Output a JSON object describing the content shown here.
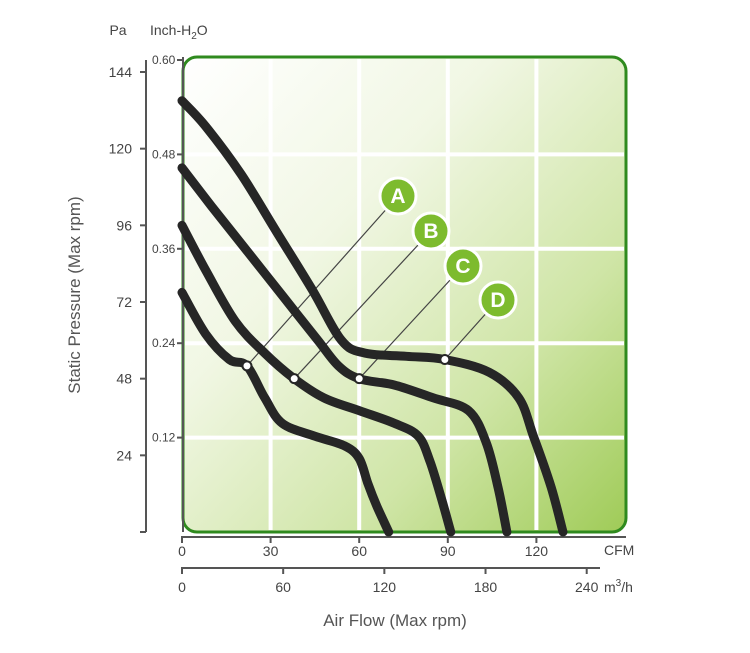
{
  "chart_data": {
    "type": "line",
    "ylabel": "Static Pressure (Max rpm)",
    "xlabel": "Air Flow (Max rpm)",
    "y_axes": [
      {
        "unit": "Pa",
        "ticks": [
          "24",
          "48",
          "72",
          "96",
          "120",
          "144"
        ],
        "range": [
          0,
          144
        ]
      },
      {
        "unit": "Inch-H",
        "unit_sub": "2",
        "unit_tail": "O",
        "ticks": [
          "0.12",
          "0.24",
          "0.36",
          "0.48",
          "0.60"
        ],
        "range": [
          0,
          0.6
        ]
      }
    ],
    "x_axes": [
      {
        "unit": "CFM",
        "ticks": [
          "0",
          "30",
          "60",
          "90",
          "120"
        ],
        "range": [
          0,
          150
        ]
      },
      {
        "unit": "m",
        "unit_sup": "3",
        "unit_tail": "/h",
        "ticks": [
          "0",
          "60",
          "120",
          "180",
          "240"
        ],
        "range": [
          0,
          255
        ]
      }
    ],
    "grid": true,
    "series": [
      {
        "label": "A",
        "operating_point": [
          22,
          52
        ],
        "points": [
          [
            0,
            75
          ],
          [
            8,
            62
          ],
          [
            16,
            54
          ],
          [
            22,
            52
          ],
          [
            28,
            42
          ],
          [
            34,
            34
          ],
          [
            45,
            30
          ],
          [
            55,
            27
          ],
          [
            60,
            23
          ],
          [
            63,
            15
          ],
          [
            66,
            8
          ],
          [
            70,
            0
          ]
        ]
      },
      {
        "label": "B",
        "operating_point": [
          38,
          48
        ],
        "points": [
          [
            0,
            96
          ],
          [
            8,
            82
          ],
          [
            18,
            66
          ],
          [
            28,
            56
          ],
          [
            38,
            48
          ],
          [
            48,
            42
          ],
          [
            60,
            38
          ],
          [
            72,
            34
          ],
          [
            80,
            30
          ],
          [
            84,
            22
          ],
          [
            88,
            10
          ],
          [
            91,
            0
          ]
        ]
      },
      {
        "label": "C",
        "operating_point": [
          60,
          48
        ],
        "points": [
          [
            0,
            114
          ],
          [
            10,
            102
          ],
          [
            22,
            88
          ],
          [
            34,
            74
          ],
          [
            46,
            60
          ],
          [
            53,
            52
          ],
          [
            60,
            48
          ],
          [
            72,
            46
          ],
          [
            85,
            42
          ],
          [
            97,
            38
          ],
          [
            103,
            28
          ],
          [
            107,
            14
          ],
          [
            110,
            0
          ]
        ]
      },
      {
        "label": "D",
        "operating_point": [
          89,
          54
        ],
        "points": [
          [
            0,
            135
          ],
          [
            8,
            127
          ],
          [
            20,
            112
          ],
          [
            32,
            94
          ],
          [
            44,
            76
          ],
          [
            54,
            60
          ],
          [
            62,
            56
          ],
          [
            76,
            55
          ],
          [
            89,
            54
          ],
          [
            104,
            50
          ],
          [
            114,
            42
          ],
          [
            119,
            30
          ],
          [
            125,
            14
          ],
          [
            129,
            0
          ]
        ]
      }
    ]
  }
}
